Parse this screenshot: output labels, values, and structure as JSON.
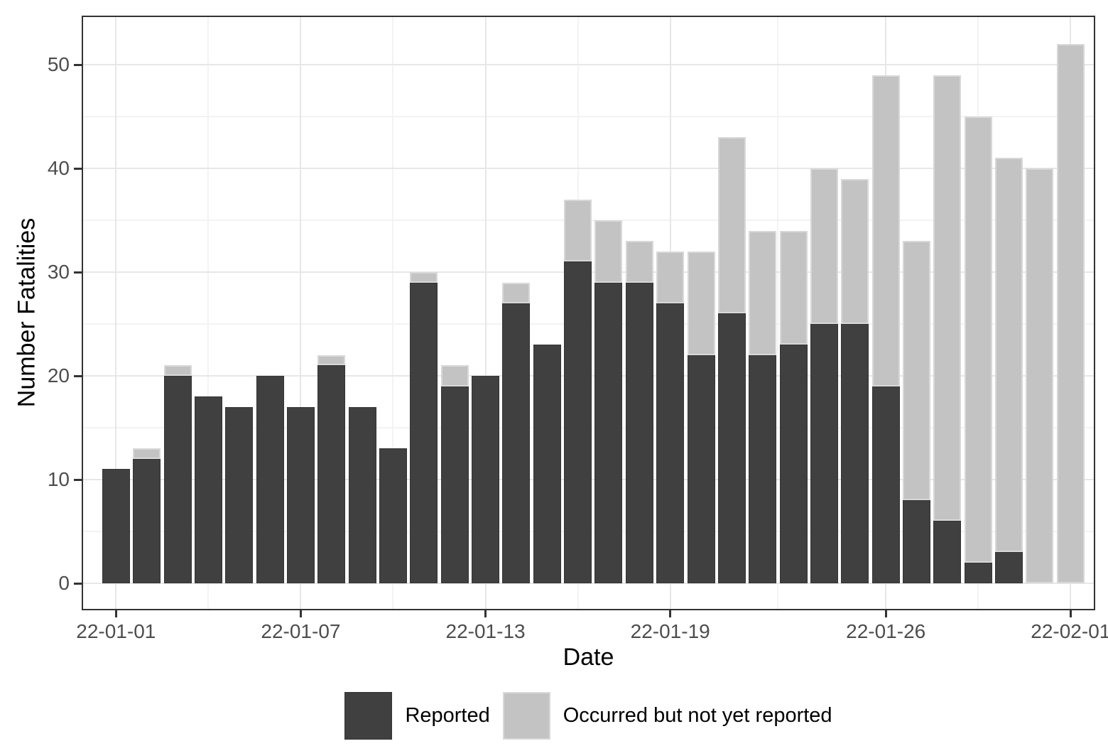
{
  "chart_data": {
    "type": "bar",
    "stacked": true,
    "title": "",
    "xlabel": "Date",
    "ylabel": "Number Fatalities",
    "x": [
      "22-01-01",
      "22-01-02",
      "22-01-03",
      "22-01-04",
      "22-01-05",
      "22-01-06",
      "22-01-07",
      "22-01-08",
      "22-01-09",
      "22-01-10",
      "22-01-11",
      "22-01-12",
      "22-01-13",
      "22-01-14",
      "22-01-15",
      "22-01-16",
      "22-01-17",
      "22-01-18",
      "22-01-19",
      "22-01-20",
      "22-01-21",
      "22-01-22",
      "22-01-23",
      "22-01-24",
      "22-01-25",
      "22-01-26",
      "22-01-27",
      "22-01-28",
      "22-01-29",
      "22-01-30",
      "22-01-31",
      "22-02-01"
    ],
    "series": [
      {
        "name": "Reported",
        "color": "#404040",
        "values": [
          11,
          12,
          20,
          18,
          17,
          20,
          17,
          21,
          17,
          13,
          29,
          19,
          20,
          27,
          23,
          31,
          29,
          29,
          27,
          22,
          26,
          22,
          23,
          25,
          25,
          19,
          8,
          6,
          2,
          3,
          0,
          0
        ]
      },
      {
        "name": "Occurred but not yet reported",
        "color": "#c3c3c3",
        "values": [
          0,
          1,
          1,
          0,
          0,
          0,
          0,
          1,
          0,
          0,
          1,
          2,
          0,
          2,
          0,
          6,
          6,
          4,
          5,
          10,
          17,
          12,
          11,
          15,
          14,
          30,
          25,
          43,
          43,
          38,
          40,
          52
        ]
      }
    ],
    "stack_totals": [
      11,
      13,
      21,
      18,
      17,
      20,
      17,
      22,
      17,
      13,
      30,
      21,
      20,
      29,
      23,
      37,
      35,
      33,
      32,
      32,
      43,
      34,
      34,
      40,
      39,
      49,
      33,
      49,
      45,
      41,
      40,
      52
    ],
    "ylim": [
      0,
      54.6
    ],
    "y_ticks": [
      0,
      10,
      20,
      30,
      40,
      50
    ],
    "y_minor_ticks": [
      5,
      15,
      25,
      35,
      45
    ],
    "x_tick_labels": [
      "22-01-01",
      "22-01-07",
      "22-01-13",
      "22-01-19",
      "22-01-26",
      "22-02-01"
    ],
    "x_tick_positions": [
      1,
      7,
      13,
      19,
      26,
      32
    ],
    "grid": true,
    "legend_position": "bottom"
  }
}
